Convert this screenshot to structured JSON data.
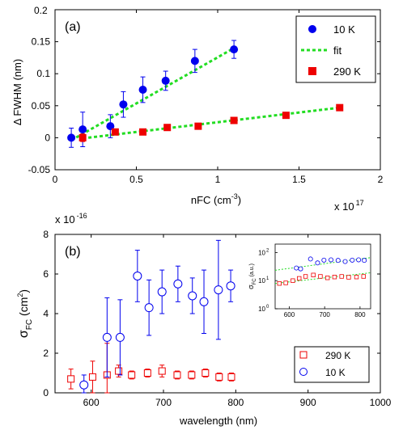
{
  "chart_data": [
    {
      "type": "scatter",
      "panel_label": "(a)",
      "xlabel": "nFC (cm",
      "xlabel_sup": "-3",
      "xlabel_end": ")",
      "ylabel": "Δ FWHM (nm)",
      "x_multiplier": "x 10",
      "x_multiplier_exp": "17",
      "top_left_tick": "0.2",
      "xlim": [
        0,
        2
      ],
      "ylim": [
        -0.05,
        0.2
      ],
      "xticks": [
        "0",
        "0.5",
        "1",
        "1.5",
        "2"
      ],
      "yticks": [
        "-0.05",
        "0",
        "0.05",
        "0.1",
        "0.15"
      ],
      "legend": [
        {
          "label": "10 K",
          "marker": "circle",
          "color": "#0000ee"
        },
        {
          "label": "fit",
          "marker": "dashed-line",
          "color": "#22dd22"
        },
        {
          "label": "290 K",
          "marker": "square",
          "color": "#ee0000"
        }
      ],
      "series": [
        {
          "name": "10 K",
          "color": "#0000ee",
          "x": [
            0.1,
            0.17,
            0.34,
            0.42,
            0.54,
            0.68,
            0.86,
            1.1
          ],
          "y": [
            0.0,
            0.013,
            0.018,
            0.052,
            0.075,
            0.089,
            0.12,
            0.138
          ],
          "yerr": [
            0.015,
            0.027,
            0.018,
            0.02,
            0.02,
            0.015,
            0.018,
            0.014
          ]
        },
        {
          "name": "290 K",
          "color": "#ee0000",
          "x": [
            0.17,
            0.37,
            0.54,
            0.69,
            0.88,
            1.1,
            1.42,
            1.75
          ],
          "y": [
            0.0,
            0.009,
            0.009,
            0.016,
            0.018,
            0.027,
            0.035,
            0.047
          ],
          "yerr": [
            0.006,
            0.004,
            0.004,
            0.003,
            0.003,
            0.003,
            0.003,
            0.003
          ]
        }
      ],
      "fits": [
        {
          "x": [
            0.1,
            1.1
          ],
          "y": [
            -0.004,
            0.14
          ]
        },
        {
          "x": [
            0.17,
            1.75
          ],
          "y": [
            -0.001,
            0.047
          ]
        }
      ]
    },
    {
      "type": "scatter",
      "panel_label": "(b)",
      "xlabel": "wavelength (nm)",
      "ylabel_sigma": "σ",
      "ylabel_sub": "FC",
      "ylabel_unit": " (cm",
      "ylabel_sup": "2",
      "ylabel_end": ")",
      "y_multiplier": "x 10",
      "y_multiplier_exp": "-16",
      "xlim": [
        550,
        1000
      ],
      "ylim": [
        0,
        8
      ],
      "xticks": [
        "600",
        "700",
        "800",
        "900",
        "1000"
      ],
      "yticks": [
        "0",
        "2",
        "4",
        "6",
        "8"
      ],
      "legend": [
        {
          "label": "290 K",
          "marker": "open-square",
          "color": "#ee0000"
        },
        {
          "label": "10 K",
          "marker": "open-circle",
          "color": "#0000ee"
        }
      ],
      "series": [
        {
          "name": "10 K",
          "color": "#0000ee",
          "x": [
            590,
            622,
            640,
            664,
            680,
            698,
            720,
            740,
            756,
            776,
            793
          ],
          "y": [
            0.4,
            2.8,
            2.8,
            5.9,
            4.3,
            5.1,
            5.5,
            4.9,
            4.6,
            5.2,
            5.4
          ],
          "yerr": [
            0.5,
            2.0,
            1.9,
            1.3,
            1.4,
            1.1,
            0.9,
            0.9,
            1.6,
            2.5,
            0.8
          ]
        },
        {
          "name": "290 K",
          "color": "#ee0000",
          "x": [
            572,
            602,
            622,
            638,
            656,
            678,
            698,
            719,
            739,
            758,
            777,
            794
          ],
          "y": [
            0.7,
            0.8,
            0.9,
            1.1,
            0.9,
            1.0,
            1.1,
            0.9,
            0.9,
            1.0,
            0.8,
            0.8
          ],
          "yerr": [
            0.5,
            0.8,
            1.6,
            0.3,
            0.2,
            0.2,
            0.3,
            0.2,
            0.2,
            0.2,
            0.2,
            0.2
          ]
        }
      ],
      "inset": {
        "ylabel_sigma": "σ",
        "ylabel_sub": "FC",
        "ylabel_unit": " (a.u.)",
        "xticks": [
          "600",
          "700",
          "800"
        ],
        "yticks": [
          "10",
          "10",
          "10"
        ],
        "ytick_exps": [
          "0",
          "1",
          "2"
        ],
        "xlim": [
          560,
          830
        ],
        "ylim_log": [
          0,
          2.3
        ],
        "series": [
          {
            "name": "10 K",
            "color": "#0000ee",
            "x": [
              620,
              632,
              660,
              680,
              698,
              718,
              738,
              758,
              778,
              796,
              812
            ],
            "y": [
              1.45,
              1.42,
              1.77,
              1.63,
              1.73,
              1.74,
              1.72,
              1.68,
              1.73,
              1.74,
              1.72
            ]
          },
          {
            "name": "290 K",
            "color": "#ee0000",
            "x": [
              572,
              590,
              610,
              628,
              646,
              668,
              688,
              708,
              728,
              748,
              768,
              790,
              810
            ],
            "y": [
              0.9,
              0.92,
              1.0,
              1.08,
              1.15,
              1.2,
              1.15,
              1.1,
              1.13,
              1.15,
              1.12,
              1.13,
              1.15
            ]
          }
        ],
        "fits": [
          {
            "x": [
              560,
              830
            ],
            "y": [
              1.37,
              1.82
            ]
          },
          {
            "x": [
              560,
              830
            ],
            "y": [
              0.9,
              1.28
            ]
          }
        ]
      }
    }
  ]
}
